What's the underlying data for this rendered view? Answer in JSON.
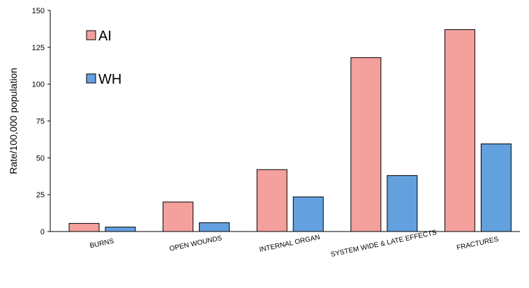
{
  "chart_data": {
    "type": "bar",
    "categories": [
      "BURNS",
      "OPEN WOUNDS",
      "INTERNAL ORGAN",
      "SYSTEM WIDE & LATE EFFECTS",
      "FRACTURES"
    ],
    "series": [
      {
        "name": "AI",
        "color": "#f4a09c",
        "values": [
          5.5,
          20,
          42,
          118,
          137
        ]
      },
      {
        "name": "WH",
        "color": "#63a0de",
        "values": [
          3,
          6,
          23.5,
          38,
          59.5
        ]
      }
    ],
    "ylabel": "Rate/100,000 population",
    "xlabel": "",
    "ylim": [
      0,
      150
    ],
    "yticks": [
      0,
      25,
      50,
      75,
      100,
      125,
      150
    ],
    "grid": false,
    "legend": "top-left"
  }
}
